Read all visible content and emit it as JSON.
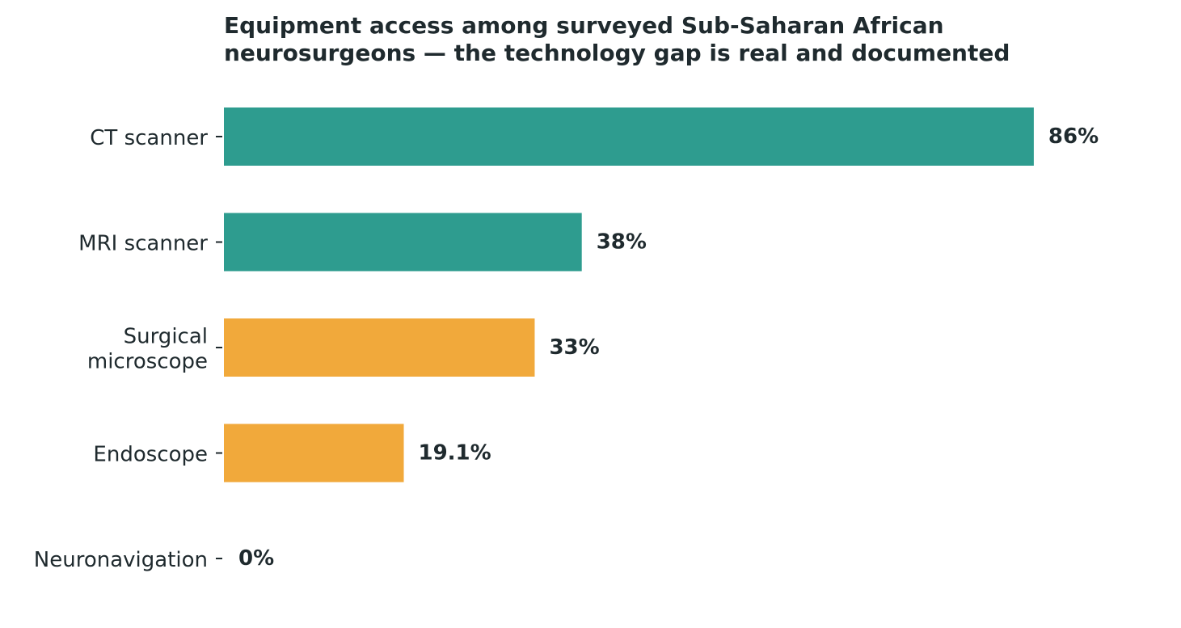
{
  "chart_data": {
    "type": "bar",
    "orientation": "horizontal",
    "title_lines": [
      "Equipment access among surveyed Sub-Saharan African",
      "neurosurgeons — the technology gap is real and documented"
    ],
    "categories": [
      [
        "CT scanner"
      ],
      [
        "MRI scanner"
      ],
      [
        "Surgical",
        "microscope"
      ],
      [
        "Endoscope"
      ],
      [
        "Neuronavigation"
      ]
    ],
    "values": [
      86,
      38,
      33,
      19.1,
      0
    ],
    "value_labels": [
      "86%",
      "38%",
      "33%",
      "19.1%",
      "0%"
    ],
    "bar_colors": [
      "#2e9c8f",
      "#2e9c8f",
      "#f1a93b",
      "#f1a93b",
      "#f1a93b"
    ],
    "xlim": [
      0,
      100
    ],
    "grid": false,
    "legend": "none"
  },
  "colors": {
    "text": "#1f2a2e",
    "teal": "#2e9c8f",
    "orange": "#f1a93b"
  }
}
